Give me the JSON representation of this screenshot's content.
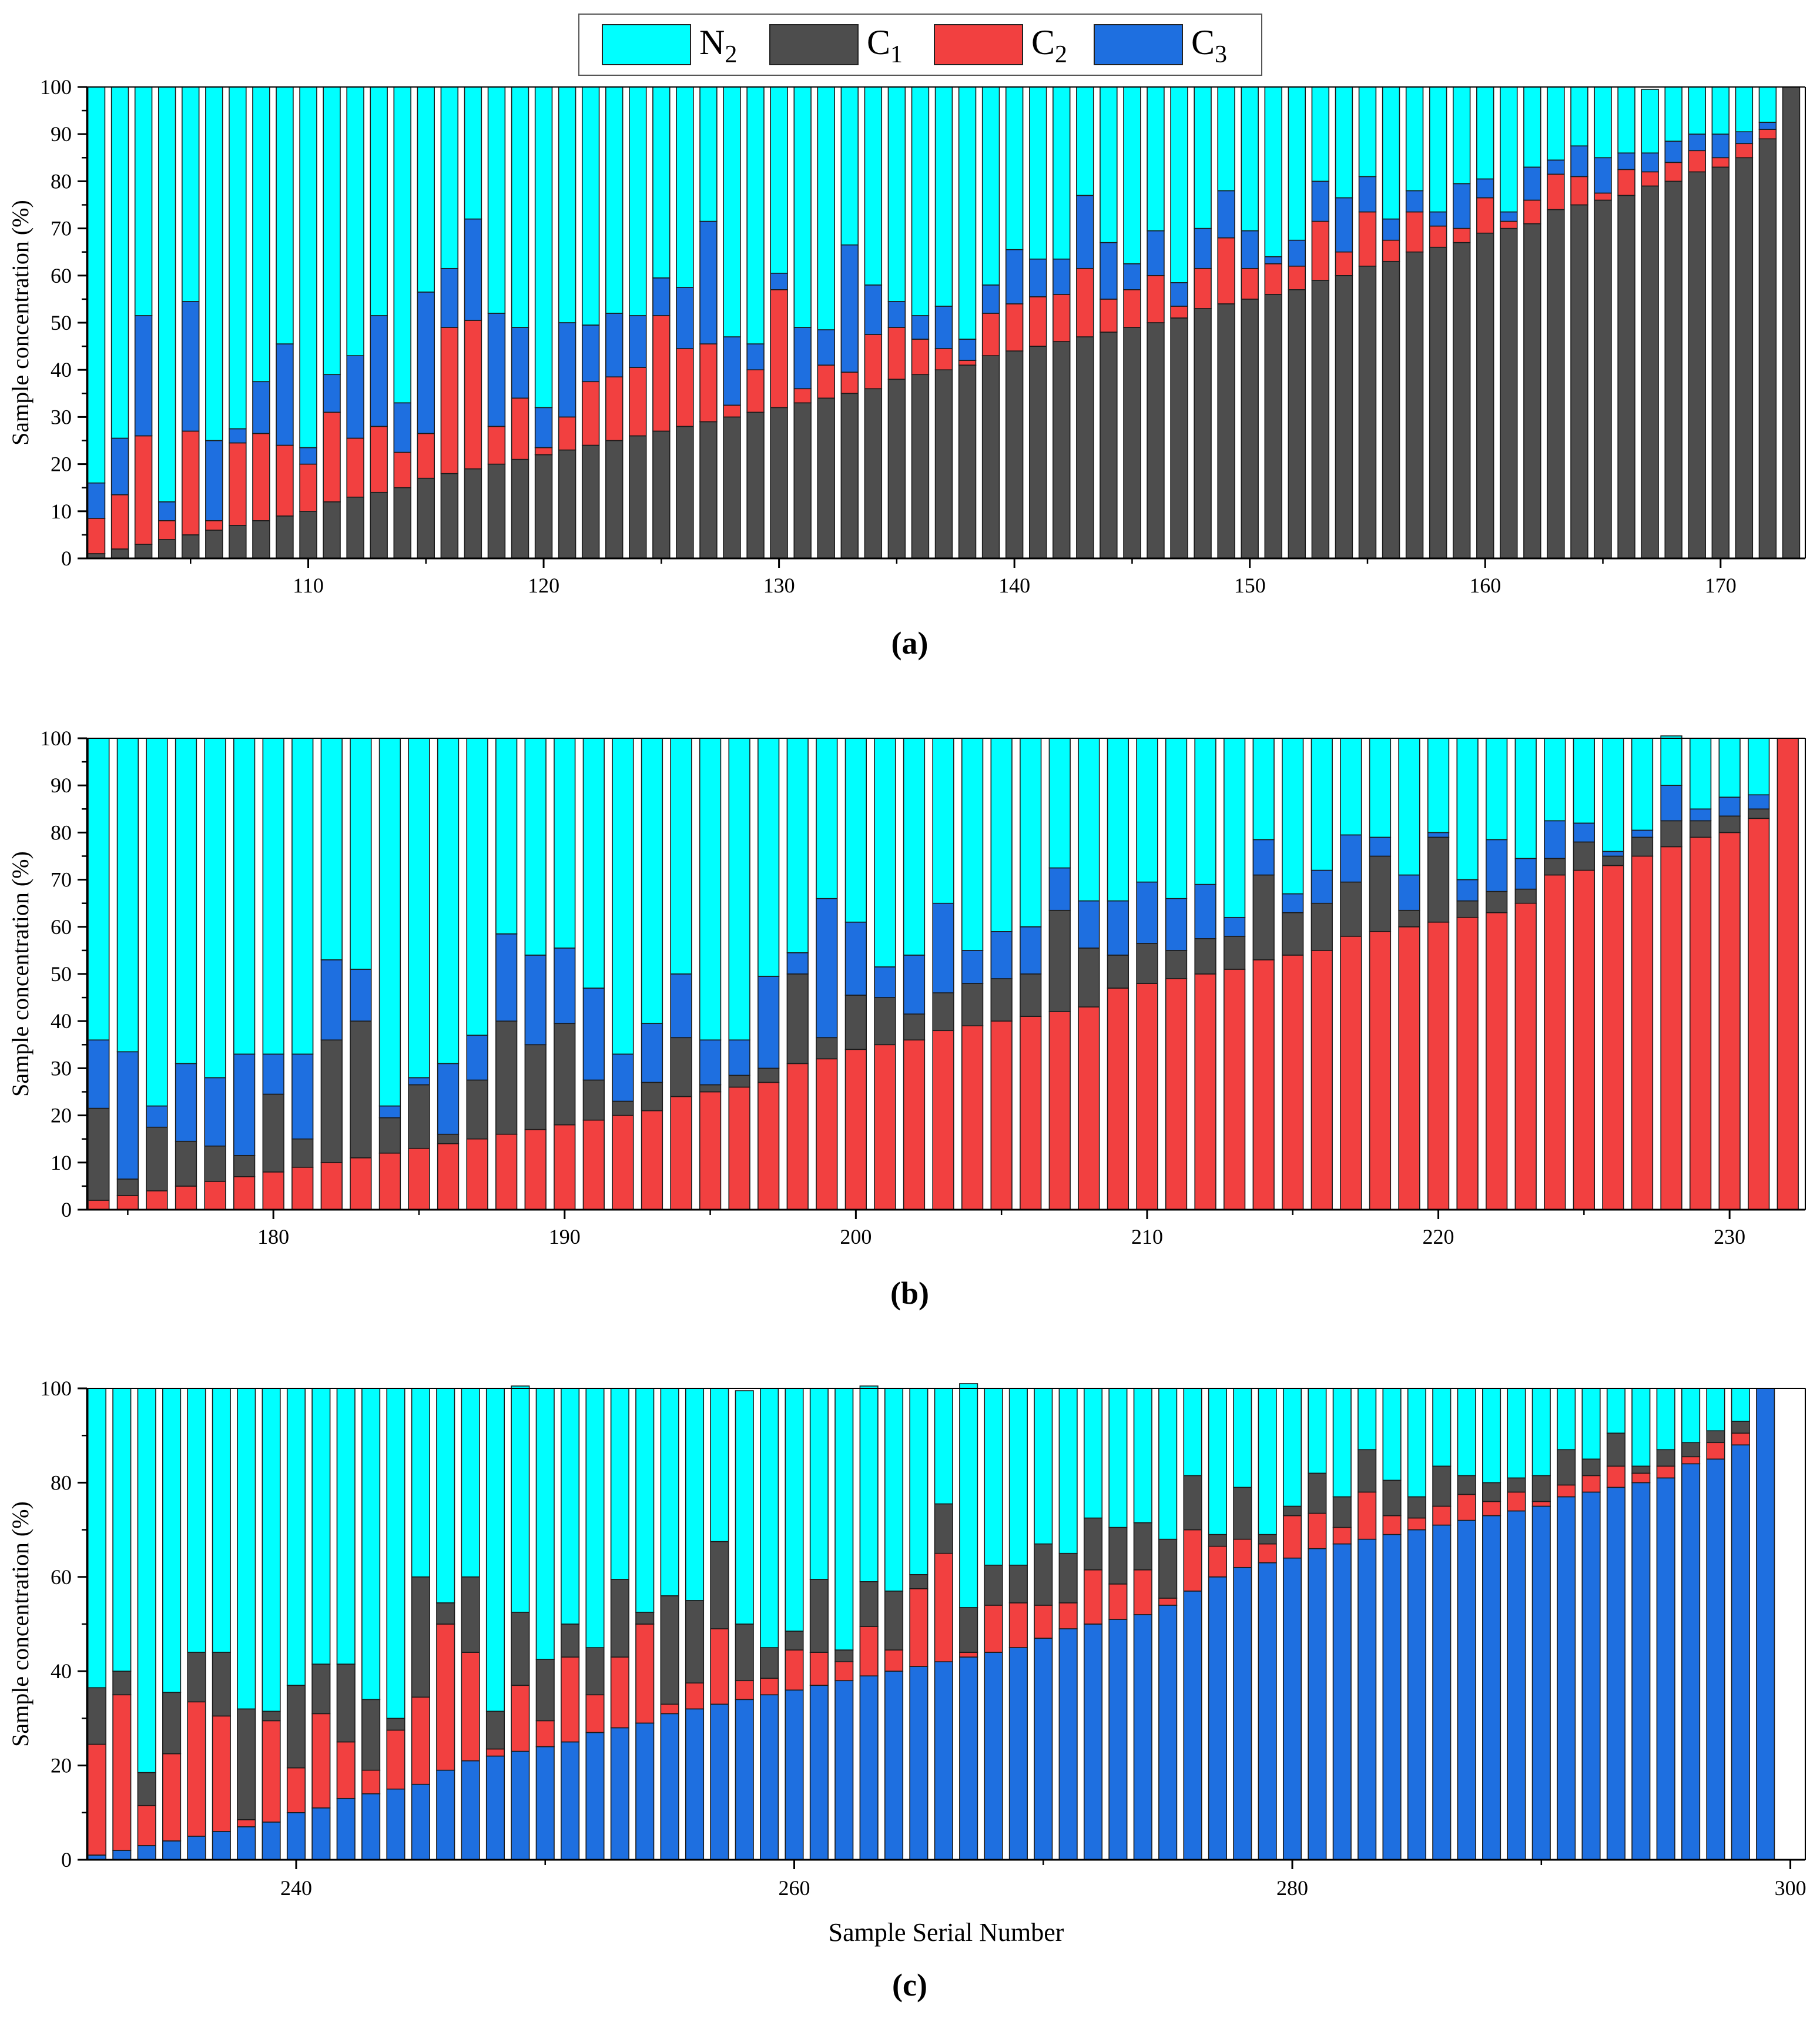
{
  "colors": {
    "N2": "#00FFFF",
    "C1": "#4D4D4D",
    "C2": "#F24040",
    "C3": "#1E6FE0",
    "axis": "#000000",
    "bar_stroke": "#1a1a1a"
  },
  "legend": {
    "items": [
      {
        "key": "N2",
        "base": "N",
        "sub": "2"
      },
      {
        "key": "C1",
        "base": "C",
        "sub": "1"
      },
      {
        "key": "C2",
        "base": "C",
        "sub": "2"
      },
      {
        "key": "C3",
        "base": "C",
        "sub": "3"
      }
    ]
  },
  "chart_data": [
    {
      "type": "bar",
      "stacked": true,
      "panel_label": "(a)",
      "ylabel": "Sample concentration (%)",
      "xlabel": "",
      "ylim": [
        0,
        100
      ],
      "yticks": [
        0,
        10,
        20,
        30,
        40,
        50,
        60,
        70,
        80,
        90,
        100
      ],
      "xticks": [
        110,
        120,
        130,
        140,
        150,
        160,
        170
      ],
      "x_start": 101,
      "xlim": [
        100.6,
        173.6
      ],
      "stack_order": [
        "C1",
        "C2",
        "C3",
        "N2"
      ],
      "series": [
        {
          "name": "C1",
          "values": [
            1,
            2,
            3,
            4,
            5,
            6,
            7,
            8,
            9,
            10,
            12,
            13,
            14,
            15,
            17,
            18,
            19,
            20,
            21,
            22,
            23,
            24,
            25,
            26,
            27,
            28,
            29,
            30,
            31,
            32,
            33,
            34,
            35,
            36,
            38,
            39,
            40,
            41,
            43,
            44,
            45,
            46,
            47,
            48,
            49,
            50,
            51,
            53,
            54,
            55,
            56,
            57,
            59,
            60,
            62,
            63,
            65,
            66,
            67,
            69,
            70,
            71,
            74,
            75,
            76,
            77,
            79,
            80,
            82,
            83,
            85,
            89,
            100
          ]
        },
        {
          "name": "C2",
          "values": [
            7.5,
            11.5,
            23,
            4,
            22,
            2,
            17.5,
            18.5,
            15,
            10,
            19,
            12.5,
            14,
            7.5,
            9.5,
            31,
            31.5,
            8,
            13,
            1.5,
            7,
            13.5,
            13.5,
            14.5,
            24.5,
            16.5,
            16.5,
            2.5,
            9,
            25,
            3,
            7,
            4.5,
            11.5,
            11,
            7.5,
            4.5,
            1,
            9,
            10,
            10.5,
            10,
            14.5,
            7,
            8,
            10,
            2.5,
            8.5,
            14,
            6.5,
            6.5,
            5,
            12.5,
            5,
            11.5,
            4.5,
            8.5,
            4.5,
            3,
            7.5,
            1.5,
            5,
            7.5,
            6,
            1.5,
            5.5,
            3,
            4,
            4.5,
            2,
            3,
            2,
            0
          ]
        },
        {
          "name": "C3",
          "values": [
            7.5,
            12,
            25.5,
            4,
            27.5,
            17,
            3,
            11,
            21.5,
            3.5,
            8,
            17.5,
            23.5,
            10.5,
            30,
            12.5,
            21.5,
            24,
            15,
            8.5,
            20,
            12,
            13.5,
            11,
            8,
            13,
            26,
            14.5,
            5.5,
            3.5,
            13,
            7.5,
            27,
            10.5,
            5.5,
            5,
            9,
            4.5,
            6,
            11.5,
            8,
            7.5,
            15.5,
            12,
            5.5,
            9.5,
            5,
            8.5,
            10,
            8,
            1.5,
            5.5,
            8.5,
            11.5,
            7.5,
            4.5,
            4.5,
            3,
            9.5,
            4,
            2,
            7,
            3,
            6.5,
            7.5,
            3.5,
            4,
            4.5,
            3.5,
            5,
            2.5,
            1.5,
            0
          ]
        },
        {
          "name": "N2",
          "values": [
            84,
            74.5,
            48.5,
            88,
            45.5,
            75,
            72.5,
            62.5,
            54.5,
            76.5,
            61,
            57,
            48.5,
            67,
            43.5,
            38.5,
            28,
            48,
            51,
            68,
            50,
            50.5,
            48,
            48.5,
            40.5,
            42.5,
            28.5,
            53,
            54.5,
            39.5,
            51,
            51.5,
            33.5,
            42,
            45.5,
            48.5,
            46.5,
            53.5,
            42,
            34.5,
            36.5,
            36.5,
            23,
            33,
            37.5,
            30.5,
            41.5,
            30,
            22,
            30.5,
            36,
            32.5,
            20,
            23.5,
            19,
            28,
            22,
            26.5,
            20.5,
            19.5,
            26.5,
            17,
            15.5,
            12.5,
            15,
            14,
            13.5,
            11.5,
            10,
            10,
            9.5,
            7.5,
            0
          ]
        }
      ]
    },
    {
      "type": "bar",
      "stacked": true,
      "panel_label": "(b)",
      "ylabel": "Sample concentration (%)",
      "xlabel": "",
      "ylim": [
        0,
        100
      ],
      "yticks": [
        0,
        10,
        20,
        30,
        40,
        50,
        60,
        70,
        80,
        90,
        100
      ],
      "xticks": [
        180,
        190,
        200,
        210,
        220,
        230
      ],
      "x_start": 174,
      "xlim": [
        173.6,
        232.6
      ],
      "stack_order": [
        "C2",
        "C1",
        "C3",
        "N2"
      ],
      "series": [
        {
          "name": "C2",
          "values": [
            2,
            3,
            4,
            5,
            6,
            7,
            8,
            9,
            10,
            11,
            12,
            13,
            14,
            15,
            16,
            17,
            18,
            19,
            20,
            21,
            24,
            25,
            26,
            27,
            31,
            32,
            34,
            35,
            36,
            38,
            39,
            40,
            41,
            42,
            43,
            47,
            48,
            49,
            50,
            51,
            53,
            54,
            55,
            58,
            59,
            60,
            61,
            62,
            63,
            65,
            71,
            72,
            73,
            75,
            77,
            79,
            80,
            83,
            100
          ]
        },
        {
          "name": "C1",
          "values": [
            19.5,
            3.5,
            13.5,
            9.5,
            7.5,
            4.5,
            16.5,
            6,
            26,
            29,
            7.5,
            13.5,
            2,
            12.5,
            24,
            18,
            21.5,
            8.5,
            3,
            6,
            12.5,
            1.5,
            2.5,
            3,
            19,
            4.5,
            11.5,
            10,
            5.5,
            8,
            9,
            9,
            9,
            21.5,
            12.5,
            7,
            8.5,
            6,
            7.5,
            7,
            18,
            9,
            10,
            11.5,
            16,
            3.5,
            18,
            3.5,
            4.5,
            3,
            3.5,
            6,
            2,
            4,
            5.5,
            3.5,
            3.5,
            2,
            0
          ]
        },
        {
          "name": "C3",
          "values": [
            14.5,
            27,
            4.5,
            16.5,
            14.5,
            21.5,
            8.5,
            18,
            17,
            11,
            2.5,
            1.5,
            15,
            9.5,
            18.5,
            19,
            16,
            19.5,
            10,
            12.5,
            13.5,
            9.5,
            7.5,
            19.5,
            4.5,
            29.5,
            15.5,
            6.5,
            12.5,
            19,
            7,
            10,
            10,
            9,
            10,
            11.5,
            13,
            11,
            11.5,
            4,
            7.5,
            4,
            7,
            10,
            4,
            7.5,
            1,
            4.5,
            11,
            6.5,
            8,
            4,
            1,
            1.5,
            7.5,
            2.5,
            4,
            3,
            0
          ]
        },
        {
          "name": "N2",
          "values": [
            64,
            66.5,
            78,
            69,
            72,
            67,
            67,
            67,
            47,
            49,
            78,
            72,
            69,
            63,
            41.5,
            46,
            44.5,
            53,
            67,
            60.5,
            50,
            64,
            64,
            50.5,
            45.5,
            34,
            39,
            48.5,
            46,
            35,
            45,
            41,
            40,
            27.5,
            34.5,
            34.5,
            30.5,
            34,
            31,
            38,
            21.5,
            33,
            28,
            20.5,
            21,
            29,
            20,
            30,
            21.5,
            25.5,
            17.5,
            18,
            24,
            19.5,
            10.5,
            15,
            12.5,
            12,
            0
          ]
        }
      ]
    },
    {
      "type": "bar",
      "stacked": true,
      "panel_label": "(c)",
      "ylabel": "Sample concentration (%)",
      "xlabel": "Sample Serial Number",
      "ylim": [
        0,
        100
      ],
      "yticks": [
        0,
        20,
        40,
        60,
        80,
        100
      ],
      "xticks": [
        240,
        260,
        280,
        300
      ],
      "x_start": 232,
      "xlim": [
        231.6,
        300.6
      ],
      "stack_order": [
        "C3",
        "C2",
        "C1",
        "N2"
      ],
      "series": [
        {
          "name": "C3",
          "values": [
            1,
            2,
            3,
            4,
            5,
            6,
            7,
            8,
            10,
            11,
            13,
            14,
            15,
            16,
            19,
            21,
            22,
            23,
            24,
            25,
            27,
            28,
            29,
            31,
            32,
            33,
            34,
            35,
            36,
            37,
            38,
            39,
            40,
            41,
            42,
            43,
            44,
            45,
            47,
            49,
            50,
            51,
            52,
            54,
            57,
            60,
            62,
            63,
            64,
            66,
            67,
            68,
            69,
            70,
            71,
            72,
            73,
            74,
            75,
            77,
            78,
            79,
            80,
            81,
            84,
            85,
            88,
            100
          ]
        },
        {
          "name": "C2",
          "values": [
            23.5,
            33,
            8.5,
            18.5,
            28.5,
            24.5,
            1.5,
            21.5,
            9.5,
            20,
            12,
            5,
            12.5,
            18.5,
            31,
            23,
            1.5,
            14,
            5.5,
            18,
            8,
            15,
            21,
            2,
            5.5,
            16,
            4,
            3.5,
            8.5,
            7,
            4,
            10.5,
            4.5,
            16.5,
            23,
            1,
            10,
            9.5,
            7,
            5.5,
            11.5,
            7.5,
            9.5,
            1.5,
            13,
            6.5,
            6,
            4,
            9,
            7.5,
            3.5,
            10,
            4,
            2.5,
            4,
            5.5,
            3,
            4,
            1,
            2.5,
            3.5,
            4.5,
            2,
            2.5,
            1.5,
            3.5,
            2.5,
            0
          ]
        },
        {
          "name": "C1",
          "values": [
            12,
            5,
            7,
            13,
            10.5,
            13.5,
            23.5,
            2,
            17.5,
            10.5,
            16.5,
            15,
            2.5,
            25.5,
            4.5,
            16,
            8,
            15.5,
            13,
            7,
            10,
            16.5,
            2.5,
            23,
            17.5,
            18.5,
            12,
            6.5,
            4,
            15.5,
            2.5,
            9.5,
            12.5,
            3,
            10.5,
            9.5,
            8.5,
            8,
            13,
            10.5,
            11,
            12,
            10,
            12.5,
            11.5,
            2.5,
            11,
            2,
            2,
            8.5,
            6.5,
            9,
            7.5,
            4.5,
            8.5,
            4,
            4,
            3,
            5.5,
            7.5,
            3.5,
            7,
            1.5,
            3.5,
            3,
            2.5,
            2.5,
            0
          ]
        },
        {
          "name": "N2",
          "values": [
            63.5,
            60,
            81.5,
            64.5,
            56,
            56,
            68,
            68.5,
            63,
            58.5,
            58.5,
            66,
            70,
            40,
            45.5,
            40,
            68.5,
            48,
            57.5,
            50,
            55,
            40.5,
            47.5,
            44,
            45,
            32.5,
            49.5,
            55,
            51.5,
            40.5,
            55.5,
            41.5,
            43,
            39.5,
            24.5,
            47.5,
            37.5,
            37.5,
            33,
            35,
            27.5,
            29.5,
            28.5,
            32,
            18.5,
            31,
            21,
            31,
            25,
            18,
            23,
            13,
            19.5,
            23,
            16.5,
            18.5,
            20,
            19,
            18.5,
            13,
            15,
            9.5,
            16.5,
            13,
            11.5,
            9,
            7,
            0
          ]
        }
      ]
    }
  ]
}
